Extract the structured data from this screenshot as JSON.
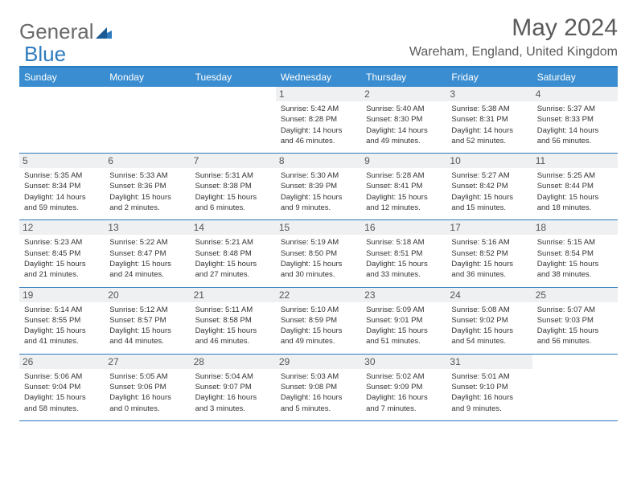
{
  "logo": {
    "general": "General",
    "blue": "Blue"
  },
  "title": "May 2024",
  "location": "Wareham, England, United Kingdom",
  "dayNames": [
    "Sunday",
    "Monday",
    "Tuesday",
    "Wednesday",
    "Thursday",
    "Friday",
    "Saturday"
  ],
  "colors": {
    "accent": "#3a8dd0",
    "border": "#2f7bbf",
    "daynum_bg": "#eef0f2",
    "text": "#333333",
    "muted": "#6a6a6a"
  },
  "layout": {
    "columns": 7,
    "rows": 5,
    "cell_font_size_pt": 7,
    "header_font_size_pt": 9,
    "title_font_size_pt": 22
  },
  "weeks": [
    [
      {
        "day": "",
        "sunrise": "",
        "sunset": "",
        "daylight": ""
      },
      {
        "day": "",
        "sunrise": "",
        "sunset": "",
        "daylight": ""
      },
      {
        "day": "",
        "sunrise": "",
        "sunset": "",
        "daylight": ""
      },
      {
        "day": "1",
        "sunrise": "Sunrise: 5:42 AM",
        "sunset": "Sunset: 8:28 PM",
        "daylight": "Daylight: 14 hours and 46 minutes."
      },
      {
        "day": "2",
        "sunrise": "Sunrise: 5:40 AM",
        "sunset": "Sunset: 8:30 PM",
        "daylight": "Daylight: 14 hours and 49 minutes."
      },
      {
        "day": "3",
        "sunrise": "Sunrise: 5:38 AM",
        "sunset": "Sunset: 8:31 PM",
        "daylight": "Daylight: 14 hours and 52 minutes."
      },
      {
        "day": "4",
        "sunrise": "Sunrise: 5:37 AM",
        "sunset": "Sunset: 8:33 PM",
        "daylight": "Daylight: 14 hours and 56 minutes."
      }
    ],
    [
      {
        "day": "5",
        "sunrise": "Sunrise: 5:35 AM",
        "sunset": "Sunset: 8:34 PM",
        "daylight": "Daylight: 14 hours and 59 minutes."
      },
      {
        "day": "6",
        "sunrise": "Sunrise: 5:33 AM",
        "sunset": "Sunset: 8:36 PM",
        "daylight": "Daylight: 15 hours and 2 minutes."
      },
      {
        "day": "7",
        "sunrise": "Sunrise: 5:31 AM",
        "sunset": "Sunset: 8:38 PM",
        "daylight": "Daylight: 15 hours and 6 minutes."
      },
      {
        "day": "8",
        "sunrise": "Sunrise: 5:30 AM",
        "sunset": "Sunset: 8:39 PM",
        "daylight": "Daylight: 15 hours and 9 minutes."
      },
      {
        "day": "9",
        "sunrise": "Sunrise: 5:28 AM",
        "sunset": "Sunset: 8:41 PM",
        "daylight": "Daylight: 15 hours and 12 minutes."
      },
      {
        "day": "10",
        "sunrise": "Sunrise: 5:27 AM",
        "sunset": "Sunset: 8:42 PM",
        "daylight": "Daylight: 15 hours and 15 minutes."
      },
      {
        "day": "11",
        "sunrise": "Sunrise: 5:25 AM",
        "sunset": "Sunset: 8:44 PM",
        "daylight": "Daylight: 15 hours and 18 minutes."
      }
    ],
    [
      {
        "day": "12",
        "sunrise": "Sunrise: 5:23 AM",
        "sunset": "Sunset: 8:45 PM",
        "daylight": "Daylight: 15 hours and 21 minutes."
      },
      {
        "day": "13",
        "sunrise": "Sunrise: 5:22 AM",
        "sunset": "Sunset: 8:47 PM",
        "daylight": "Daylight: 15 hours and 24 minutes."
      },
      {
        "day": "14",
        "sunrise": "Sunrise: 5:21 AM",
        "sunset": "Sunset: 8:48 PM",
        "daylight": "Daylight: 15 hours and 27 minutes."
      },
      {
        "day": "15",
        "sunrise": "Sunrise: 5:19 AM",
        "sunset": "Sunset: 8:50 PM",
        "daylight": "Daylight: 15 hours and 30 minutes."
      },
      {
        "day": "16",
        "sunrise": "Sunrise: 5:18 AM",
        "sunset": "Sunset: 8:51 PM",
        "daylight": "Daylight: 15 hours and 33 minutes."
      },
      {
        "day": "17",
        "sunrise": "Sunrise: 5:16 AM",
        "sunset": "Sunset: 8:52 PM",
        "daylight": "Daylight: 15 hours and 36 minutes."
      },
      {
        "day": "18",
        "sunrise": "Sunrise: 5:15 AM",
        "sunset": "Sunset: 8:54 PM",
        "daylight": "Daylight: 15 hours and 38 minutes."
      }
    ],
    [
      {
        "day": "19",
        "sunrise": "Sunrise: 5:14 AM",
        "sunset": "Sunset: 8:55 PM",
        "daylight": "Daylight: 15 hours and 41 minutes."
      },
      {
        "day": "20",
        "sunrise": "Sunrise: 5:12 AM",
        "sunset": "Sunset: 8:57 PM",
        "daylight": "Daylight: 15 hours and 44 minutes."
      },
      {
        "day": "21",
        "sunrise": "Sunrise: 5:11 AM",
        "sunset": "Sunset: 8:58 PM",
        "daylight": "Daylight: 15 hours and 46 minutes."
      },
      {
        "day": "22",
        "sunrise": "Sunrise: 5:10 AM",
        "sunset": "Sunset: 8:59 PM",
        "daylight": "Daylight: 15 hours and 49 minutes."
      },
      {
        "day": "23",
        "sunrise": "Sunrise: 5:09 AM",
        "sunset": "Sunset: 9:01 PM",
        "daylight": "Daylight: 15 hours and 51 minutes."
      },
      {
        "day": "24",
        "sunrise": "Sunrise: 5:08 AM",
        "sunset": "Sunset: 9:02 PM",
        "daylight": "Daylight: 15 hours and 54 minutes."
      },
      {
        "day": "25",
        "sunrise": "Sunrise: 5:07 AM",
        "sunset": "Sunset: 9:03 PM",
        "daylight": "Daylight: 15 hours and 56 minutes."
      }
    ],
    [
      {
        "day": "26",
        "sunrise": "Sunrise: 5:06 AM",
        "sunset": "Sunset: 9:04 PM",
        "daylight": "Daylight: 15 hours and 58 minutes."
      },
      {
        "day": "27",
        "sunrise": "Sunrise: 5:05 AM",
        "sunset": "Sunset: 9:06 PM",
        "daylight": "Daylight: 16 hours and 0 minutes."
      },
      {
        "day": "28",
        "sunrise": "Sunrise: 5:04 AM",
        "sunset": "Sunset: 9:07 PM",
        "daylight": "Daylight: 16 hours and 3 minutes."
      },
      {
        "day": "29",
        "sunrise": "Sunrise: 5:03 AM",
        "sunset": "Sunset: 9:08 PM",
        "daylight": "Daylight: 16 hours and 5 minutes."
      },
      {
        "day": "30",
        "sunrise": "Sunrise: 5:02 AM",
        "sunset": "Sunset: 9:09 PM",
        "daylight": "Daylight: 16 hours and 7 minutes."
      },
      {
        "day": "31",
        "sunrise": "Sunrise: 5:01 AM",
        "sunset": "Sunset: 9:10 PM",
        "daylight": "Daylight: 16 hours and 9 minutes."
      },
      {
        "day": "",
        "sunrise": "",
        "sunset": "",
        "daylight": ""
      }
    ]
  ]
}
